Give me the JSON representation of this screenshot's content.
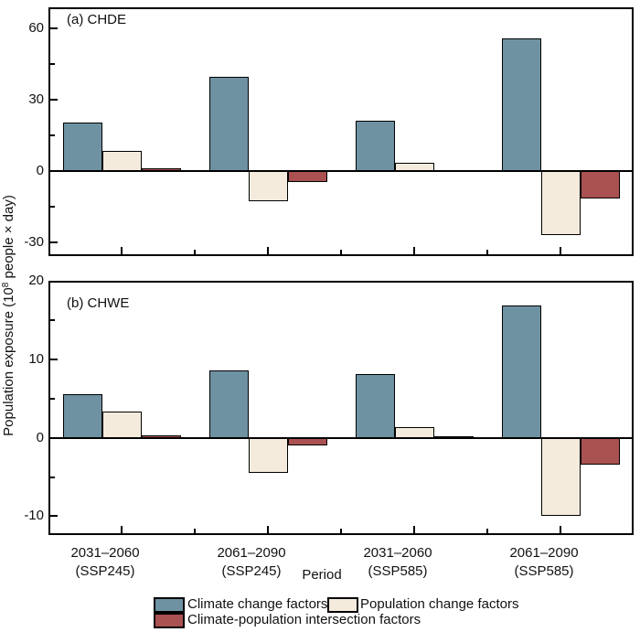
{
  "figure": {
    "xlabel": "Period",
    "ylabel": {
      "prefix": "Population exposure (10",
      "sup": "8",
      "suffix": " people × day)"
    }
  },
  "categories": [
    {
      "period": "2031–2060",
      "scenario": "(SSP245)"
    },
    {
      "period": "2061–2090",
      "scenario": "(SSP245)"
    },
    {
      "period": "2031–2060",
      "scenario": "(SSP585)"
    },
    {
      "period": "2061–2090",
      "scenario": "(SSP585)"
    }
  ],
  "legend": {
    "entries": [
      {
        "label": "Climate change factors",
        "color": "#6f92a2"
      },
      {
        "label": "Population change factors",
        "color": "#f4ebdd"
      },
      {
        "label": "Climate-population intersection factors",
        "color": "#aa5151"
      }
    ]
  },
  "colors": {
    "climate_blue": "#6f92a2",
    "population_cream": "#f4ebdd",
    "intersection_red": "#aa5151",
    "axis_black": "#000000"
  },
  "chart_data": [
    {
      "type": "bar",
      "panel": "a",
      "title": "(a) CHDE",
      "categories": [
        "2031–2060 (SSP245)",
        "2061–2090 (SSP245)",
        "2031–2060 (SSP585)",
        "2061–2090 (SSP585)"
      ],
      "series": [
        {
          "name": "Climate change factors",
          "color": "#6f92a2",
          "values": [
            20.2,
            39.5,
            21.3,
            55.9
          ]
        },
        {
          "name": "Population change factors",
          "color": "#f4ebdd",
          "values": [
            8.6,
            -12.6,
            3.4,
            -26.9
          ]
        },
        {
          "name": "Climate-population intersection factors",
          "color": "#aa5151",
          "values": [
            1.1,
            -4.5,
            0.5,
            -11.5
          ]
        }
      ],
      "ylim": [
        -35.8,
        68.8
      ],
      "yticks_major": [
        -30,
        0,
        30,
        60
      ],
      "yticks_minor": [
        -15,
        15,
        45
      ],
      "grid": false,
      "xlabel": "Period",
      "ylabel": "Population exposure (10^8 people × day)"
    },
    {
      "type": "bar",
      "panel": "b",
      "title": "(b) CHWE",
      "categories": [
        "2031–2060 (SSP245)",
        "2061–2090 (SSP245)",
        "2031–2060 (SSP585)",
        "2061–2090 (SSP585)"
      ],
      "series": [
        {
          "name": "Climate change factors",
          "color": "#6f92a2",
          "values": [
            5.5,
            8.6,
            8.1,
            16.9
          ]
        },
        {
          "name": "Population change factors",
          "color": "#f4ebdd",
          "values": [
            3.3,
            -4.5,
            1.4,
            -9.9
          ]
        },
        {
          "name": "Climate-population intersection factors",
          "color": "#aa5151",
          "values": [
            0.35,
            -1.0,
            0.15,
            -3.4
          ]
        }
      ],
      "ylim": [
        -12.4,
        20
      ],
      "yticks_major": [
        -10,
        0,
        10,
        20
      ],
      "yticks_minor": [
        -5,
        5,
        15
      ],
      "grid": false,
      "xlabel": "Period",
      "ylabel": "Population exposure (10^8 people × day)"
    }
  ],
  "legend_layout_note": "bottom-center, two rows"
}
